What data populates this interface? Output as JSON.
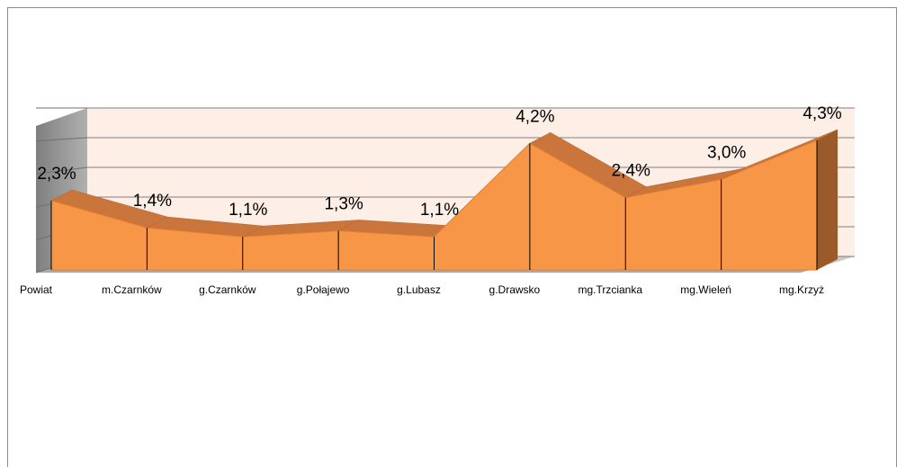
{
  "chart_data": {
    "type": "area3d",
    "categories": [
      "Powiat",
      "m.Czarnków",
      "g.Czarnków",
      "g.Połajewo",
      "g.Lubasz",
      "g.Drawsko",
      "mg.Trzcianka",
      "mg.Wieleń",
      "mg.Krzyż"
    ],
    "values": [
      2.3,
      1.4,
      1.1,
      1.3,
      1.1,
      4.2,
      2.4,
      3.0,
      4.3
    ],
    "value_labels": [
      "2,3%",
      "1,4%",
      "1,1%",
      "1,3%",
      "1,1%",
      "4,2%",
      "2,4%",
      "3,0%",
      "4,3%"
    ],
    "color": "#f79646",
    "ylim": [
      0,
      5
    ],
    "yticks": [
      0,
      1,
      2,
      3,
      4,
      5
    ],
    "grid": true
  }
}
